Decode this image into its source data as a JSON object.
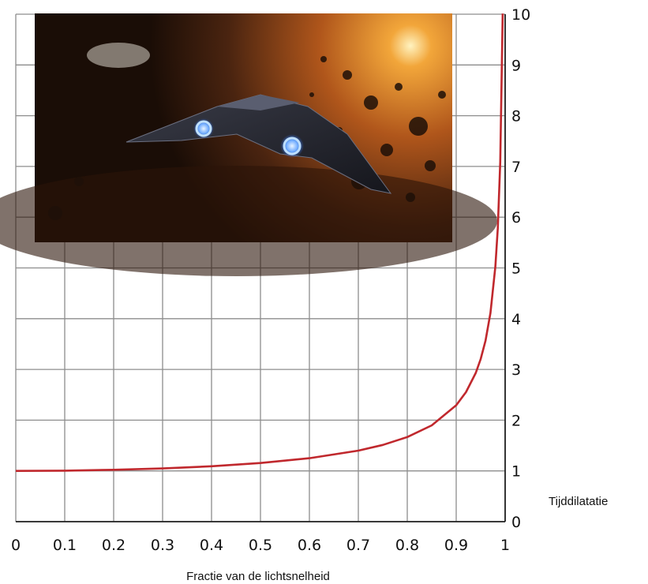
{
  "chart_data": {
    "type": "line",
    "xlabel": "Fractie van de lichtsnelheid",
    "ylabel": "Tijddilatatie",
    "xlim": [
      0,
      1
    ],
    "ylim": [
      0,
      10
    ],
    "x_ticks": [
      "0",
      "0.1",
      "0.2",
      "0.3",
      "0.4",
      "0.5",
      "0.6",
      "0.7",
      "0.8",
      "0.9",
      "1"
    ],
    "y_ticks": [
      "0",
      "1",
      "2",
      "3",
      "4",
      "5",
      "6",
      "7",
      "8",
      "9",
      "10"
    ],
    "y_axis_side": "right",
    "grid": true,
    "series": [
      {
        "color": "#c0282d",
        "x": [
          0,
          0.1,
          0.2,
          0.3,
          0.4,
          0.5,
          0.6,
          0.7,
          0.75,
          0.8,
          0.85,
          0.9,
          0.92,
          0.94,
          0.95,
          0.96,
          0.97,
          0.98,
          0.985,
          0.99,
          0.995
        ],
        "y": [
          1.0,
          1.005,
          1.021,
          1.048,
          1.091,
          1.155,
          1.25,
          1.4,
          1.512,
          1.667,
          1.898,
          2.294,
          2.552,
          2.931,
          3.203,
          3.571,
          4.113,
          5.025,
          5.783,
          7.089,
          10.013
        ]
      }
    ],
    "inset_image": "spaceship flying through an asteroid field with a glowing sun"
  }
}
